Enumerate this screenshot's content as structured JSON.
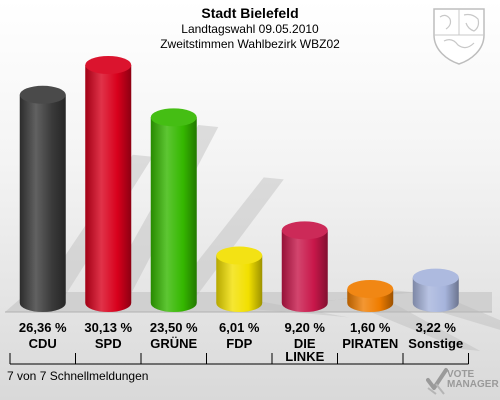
{
  "header": {
    "title": "Stadt Bielefeld",
    "subtitle": "Landtagswahl 09.05.2010",
    "subtitle2": "Zweitstimmen Wahlbezirk WBZ02"
  },
  "footer": {
    "text": "7 von 7 Schnellmeldungen"
  },
  "brand": {
    "line1": "VOTE",
    "line2": "MANAGER"
  },
  "icons": {
    "crest": "coat-of-arms-icon",
    "brand": "vote-manager-logo-icon"
  },
  "chart_data": {
    "type": "bar",
    "categories": [
      "CDU",
      "SPD",
      "GRÜNE",
      "FDP",
      "DIE LINKE",
      "PIRATEN",
      "Sonstige"
    ],
    "values": [
      26.36,
      30.13,
      23.5,
      6.01,
      9.2,
      1.6,
      3.22
    ],
    "value_labels": [
      "26,36 %",
      "30,13 %",
      "23,50 %",
      "6,01 %",
      "9,20 %",
      "1,60 %",
      "3,22 %"
    ],
    "colors": [
      "#3a3a3a",
      "#d8001c",
      "#35b800",
      "#f2e000",
      "#c8174a",
      "#f07d00",
      "#a6b4dc"
    ],
    "ylim": [
      0,
      30.13
    ],
    "grid": false,
    "legend": "none"
  }
}
